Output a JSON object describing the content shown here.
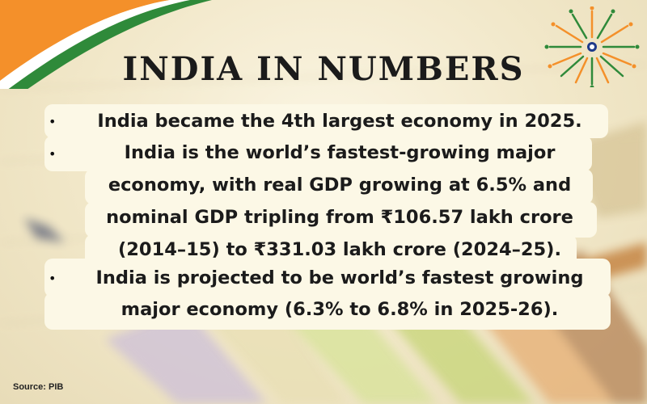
{
  "title": "INDIA IN NUMBERS",
  "bullets": [
    {
      "lines": [
        "India became the 4th largest economy in 2025."
      ]
    },
    {
      "lines": [
        "India is the world’s fastest-growing major",
        "economy, with real GDP growing at 6.5% and",
        "nominal GDP tripling from ₹106.57 lakh crore",
        "(2014–15) to ₹331.03 lakh crore (2024–25)."
      ]
    },
    {
      "lines": [
        "India is projected to be world’s fastest growing",
        "major economy (6.3% to 6.8% in 2025-26)."
      ]
    }
  ],
  "bullet_glyph": "•",
  "source": "Source:  PIB",
  "colors": {
    "saffron": "#f4902a",
    "white": "#ffffff",
    "green": "#2f8a3a",
    "navy": "#1f3a8a",
    "panel": "#fcf8e6",
    "text": "#1b1b1b"
  },
  "icons": [
    "tricolor-ribbon",
    "fireworks-icon",
    "blurred-chart-background"
  ]
}
